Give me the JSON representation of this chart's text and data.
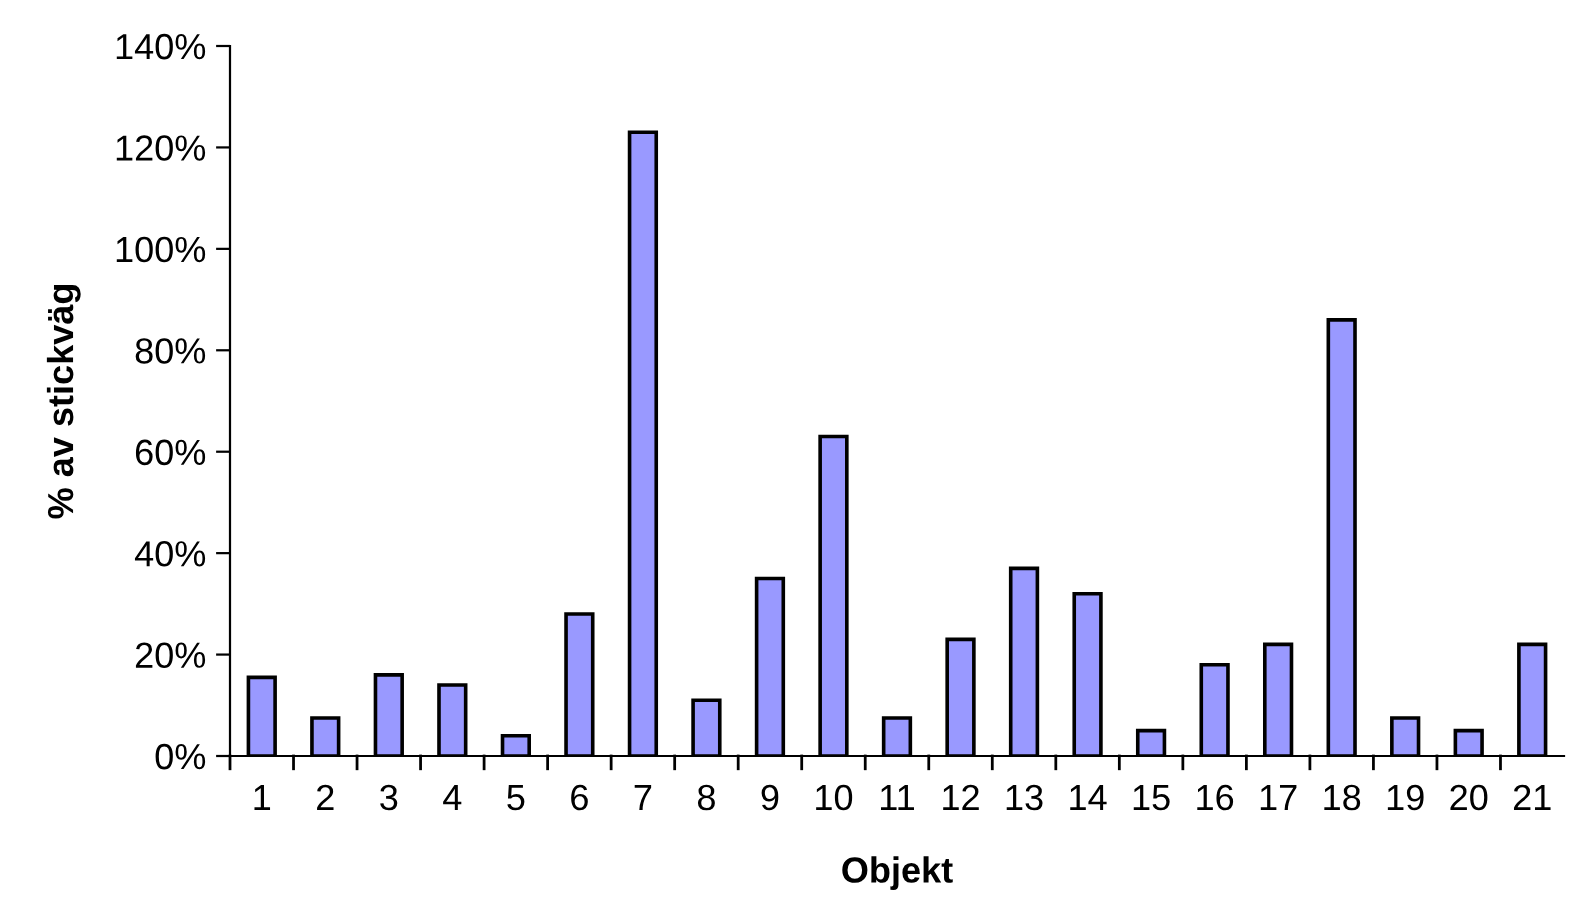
{
  "chart_data": {
    "type": "bar",
    "xlabel": "Objekt",
    "ylabel": "% av stickväg",
    "categories": [
      "1",
      "2",
      "3",
      "4",
      "5",
      "6",
      "7",
      "8",
      "9",
      "10",
      "11",
      "12",
      "13",
      "14",
      "15",
      "16",
      "17",
      "18",
      "19",
      "20",
      "21"
    ],
    "values": [
      15.5,
      7.5,
      16,
      14,
      4,
      28,
      123,
      11,
      35,
      63,
      7.5,
      23,
      37,
      32,
      5,
      18,
      22,
      86,
      7.5,
      5,
      22
    ],
    "color": "#9999ff",
    "ylim": [
      0,
      140
    ],
    "yticks": [
      {
        "value": 0,
        "label": "0%"
      },
      {
        "value": 20,
        "label": "20%"
      },
      {
        "value": 40,
        "label": "40%"
      },
      {
        "value": 60,
        "label": "60%"
      },
      {
        "value": 80,
        "label": "80%"
      },
      {
        "value": 100,
        "label": "100%"
      },
      {
        "value": 120,
        "label": "120%"
      },
      {
        "value": 140,
        "label": "140%"
      }
    ],
    "grid": false
  }
}
